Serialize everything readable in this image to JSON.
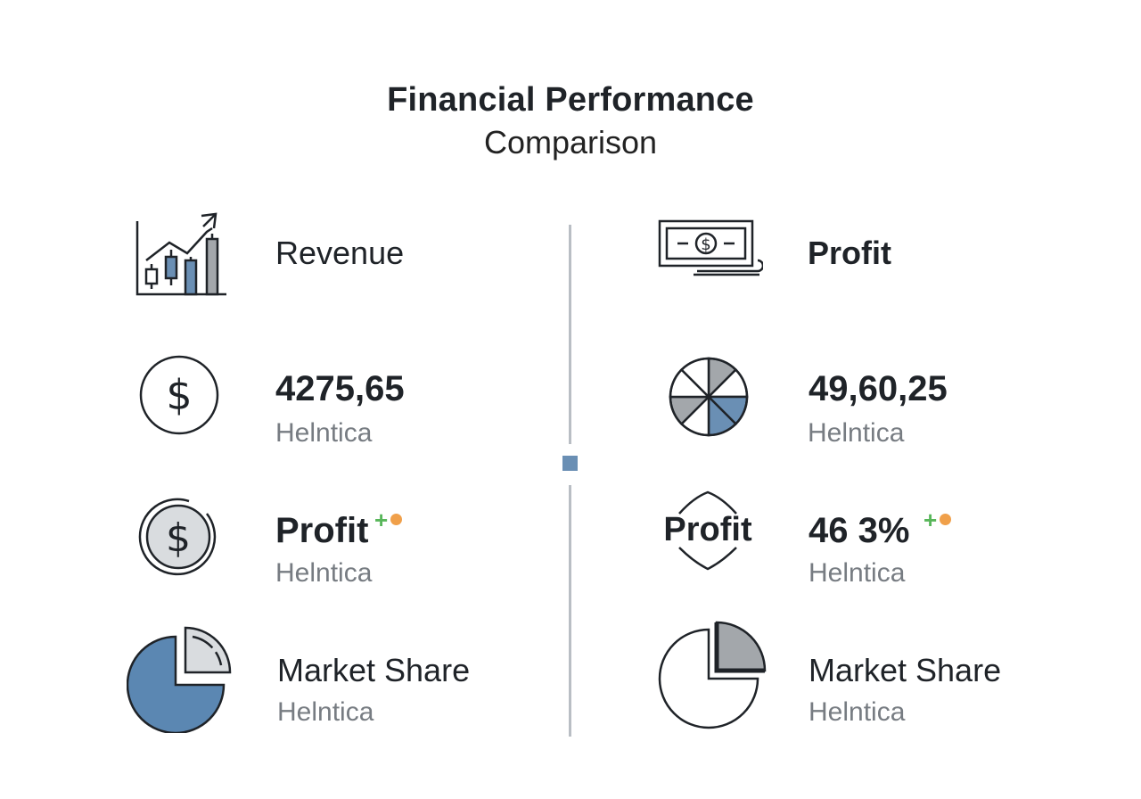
{
  "header": {
    "title": "Financial Performance",
    "subtitle": "Comparison"
  },
  "left": {
    "row1": {
      "label": "Revenue",
      "icon": "bar-chart-trend-icon"
    },
    "row2": {
      "value": "4275,65",
      "sub": "Helntica",
      "icon": "dollar-circle-icon"
    },
    "row3": {
      "label": "Profit",
      "plus": "+",
      "sub": "Helntica",
      "icon": "dollar-coin-icon"
    },
    "row4": {
      "label": "Market Share",
      "sub": "Helntica",
      "icon": "pie-chart-icon"
    }
  },
  "right": {
    "row1": {
      "label": "Profit",
      "icon": "banknote-icon"
    },
    "row2": {
      "value": "49,60,25",
      "sub": "Helntica",
      "icon": "segmented-wheel-icon"
    },
    "row3": {
      "icon_text": "Profit",
      "value": "46 3%",
      "plus": "+",
      "sub": "Helntica",
      "icon": "profit-shield-icon"
    },
    "row4": {
      "label": "Market Share",
      "sub": "Helntica",
      "icon": "pie-chart-outline-icon"
    }
  },
  "colors": {
    "accent_blue": "#6a8fb4",
    "gray": "#a3a7ab",
    "positive_green": "#58b65a",
    "orange_dot": "#f0a04a"
  }
}
